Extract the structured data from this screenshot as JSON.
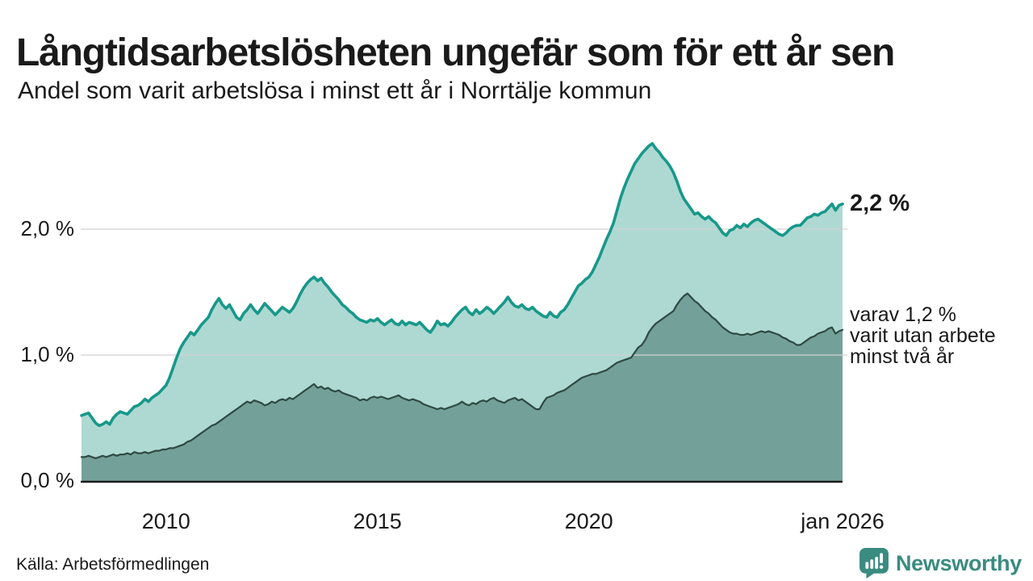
{
  "header": {
    "title": "Långtidsarbetslösheten ungefär som för ett år sen",
    "subtitle": "Andel som varit arbetslösa i minst ett år i Norrtälje kommun"
  },
  "chart_data": {
    "type": "area",
    "x_unit": "monthly",
    "x_start_label": "2008",
    "x_end_label": "jan 2026",
    "ylim": [
      0,
      2.8
    ],
    "grid": "horizontal",
    "legend_position": "none",
    "y_ticks": [
      {
        "label": "2,0 %",
        "value": 2.0
      },
      {
        "label": "1,0 %",
        "value": 1.0
      },
      {
        "label": "0,0 %",
        "value": 0.0
      }
    ],
    "x_ticks": [
      {
        "label": "2010",
        "month": 24
      },
      {
        "label": "2015",
        "month": 84
      },
      {
        "label": "2020",
        "month": 144
      },
      {
        "label": "jan 2026",
        "month": 216
      }
    ],
    "series": [
      {
        "name": "Andel som varit arbetslösa minst ett år",
        "color": "#17988a",
        "fill": "#aed9d2",
        "latest_value": 2.2,
        "values": [
          0.52,
          0.53,
          0.54,
          0.5,
          0.46,
          0.44,
          0.45,
          0.47,
          0.45,
          0.5,
          0.53,
          0.55,
          0.54,
          0.53,
          0.56,
          0.59,
          0.6,
          0.62,
          0.65,
          0.63,
          0.66,
          0.68,
          0.7,
          0.73,
          0.76,
          0.82,
          0.9,
          0.98,
          1.05,
          1.1,
          1.14,
          1.18,
          1.16,
          1.2,
          1.24,
          1.27,
          1.3,
          1.36,
          1.41,
          1.45,
          1.4,
          1.37,
          1.4,
          1.35,
          1.3,
          1.28,
          1.33,
          1.36,
          1.4,
          1.36,
          1.33,
          1.37,
          1.41,
          1.38,
          1.35,
          1.32,
          1.35,
          1.38,
          1.36,
          1.34,
          1.37,
          1.42,
          1.48,
          1.53,
          1.57,
          1.6,
          1.62,
          1.59,
          1.61,
          1.57,
          1.54,
          1.5,
          1.47,
          1.44,
          1.4,
          1.38,
          1.35,
          1.33,
          1.3,
          1.28,
          1.27,
          1.26,
          1.28,
          1.27,
          1.29,
          1.26,
          1.24,
          1.26,
          1.28,
          1.25,
          1.24,
          1.27,
          1.24,
          1.26,
          1.25,
          1.24,
          1.26,
          1.23,
          1.2,
          1.18,
          1.22,
          1.27,
          1.24,
          1.25,
          1.23,
          1.26,
          1.3,
          1.33,
          1.36,
          1.38,
          1.34,
          1.32,
          1.36,
          1.33,
          1.35,
          1.38,
          1.36,
          1.33,
          1.36,
          1.39,
          1.42,
          1.46,
          1.42,
          1.39,
          1.38,
          1.4,
          1.37,
          1.36,
          1.38,
          1.35,
          1.33,
          1.31,
          1.3,
          1.34,
          1.31,
          1.3,
          1.34,
          1.36,
          1.4,
          1.45,
          1.5,
          1.55,
          1.57,
          1.6,
          1.62,
          1.66,
          1.72,
          1.78,
          1.85,
          1.92,
          1.98,
          2.05,
          2.15,
          2.25,
          2.33,
          2.4,
          2.46,
          2.52,
          2.56,
          2.6,
          2.63,
          2.66,
          2.68,
          2.64,
          2.61,
          2.57,
          2.54,
          2.5,
          2.45,
          2.38,
          2.3,
          2.24,
          2.2,
          2.16,
          2.12,
          2.13,
          2.1,
          2.08,
          2.1,
          2.07,
          2.05,
          2.01,
          1.97,
          1.95,
          1.99,
          2.0,
          2.03,
          2.01,
          2.04,
          2.02,
          2.05,
          2.07,
          2.08,
          2.06,
          2.04,
          2.02,
          2.0,
          1.98,
          1.96,
          1.95,
          1.97,
          2.0,
          2.02,
          2.03,
          2.03,
          2.06,
          2.09,
          2.1,
          2.12,
          2.11,
          2.13,
          2.14,
          2.17,
          2.2,
          2.15,
          2.19,
          2.2
        ]
      },
      {
        "name": "Andel som varit utan arbete minst två år",
        "color": "#2e4a43",
        "fill": "#73a199",
        "latest_value": 1.2,
        "values": [
          0.19,
          0.19,
          0.2,
          0.19,
          0.18,
          0.19,
          0.2,
          0.19,
          0.2,
          0.21,
          0.2,
          0.21,
          0.21,
          0.22,
          0.21,
          0.23,
          0.22,
          0.22,
          0.23,
          0.22,
          0.23,
          0.24,
          0.24,
          0.25,
          0.25,
          0.26,
          0.26,
          0.27,
          0.28,
          0.29,
          0.31,
          0.32,
          0.34,
          0.36,
          0.38,
          0.4,
          0.42,
          0.44,
          0.45,
          0.47,
          0.49,
          0.51,
          0.53,
          0.55,
          0.57,
          0.59,
          0.61,
          0.63,
          0.62,
          0.64,
          0.63,
          0.62,
          0.6,
          0.61,
          0.63,
          0.62,
          0.64,
          0.65,
          0.64,
          0.66,
          0.65,
          0.67,
          0.69,
          0.71,
          0.73,
          0.75,
          0.77,
          0.74,
          0.75,
          0.73,
          0.74,
          0.72,
          0.71,
          0.72,
          0.7,
          0.69,
          0.68,
          0.67,
          0.66,
          0.64,
          0.65,
          0.64,
          0.66,
          0.67,
          0.66,
          0.67,
          0.66,
          0.65,
          0.66,
          0.67,
          0.68,
          0.66,
          0.65,
          0.64,
          0.65,
          0.64,
          0.63,
          0.61,
          0.6,
          0.59,
          0.58,
          0.57,
          0.58,
          0.57,
          0.58,
          0.59,
          0.6,
          0.61,
          0.63,
          0.61,
          0.6,
          0.62,
          0.61,
          0.63,
          0.64,
          0.63,
          0.65,
          0.66,
          0.64,
          0.63,
          0.62,
          0.64,
          0.65,
          0.66,
          0.64,
          0.65,
          0.63,
          0.61,
          0.59,
          0.57,
          0.57,
          0.62,
          0.66,
          0.67,
          0.68,
          0.7,
          0.71,
          0.72,
          0.74,
          0.76,
          0.78,
          0.8,
          0.82,
          0.83,
          0.84,
          0.85,
          0.85,
          0.86,
          0.87,
          0.88,
          0.9,
          0.92,
          0.94,
          0.95,
          0.96,
          0.97,
          0.98,
          1.02,
          1.06,
          1.08,
          1.12,
          1.18,
          1.22,
          1.25,
          1.27,
          1.29,
          1.31,
          1.33,
          1.35,
          1.4,
          1.44,
          1.47,
          1.49,
          1.46,
          1.43,
          1.41,
          1.38,
          1.35,
          1.33,
          1.3,
          1.28,
          1.25,
          1.22,
          1.2,
          1.18,
          1.17,
          1.17,
          1.16,
          1.16,
          1.17,
          1.16,
          1.17,
          1.18,
          1.19,
          1.18,
          1.19,
          1.18,
          1.17,
          1.16,
          1.14,
          1.13,
          1.11,
          1.1,
          1.08,
          1.08,
          1.1,
          1.12,
          1.14,
          1.15,
          1.17,
          1.18,
          1.19,
          1.21,
          1.22,
          1.17,
          1.19,
          1.2
        ]
      }
    ],
    "annotations": {
      "latest_total": "2,2 %",
      "breakdown_lines": [
        "varav 1,2 %",
        "varit utan arbete",
        "minst två år"
      ]
    }
  },
  "footer": {
    "source": "Källa: Arbetsförmedlingen",
    "brand": "Newsworthy",
    "brand_color": "#3a8b80"
  }
}
